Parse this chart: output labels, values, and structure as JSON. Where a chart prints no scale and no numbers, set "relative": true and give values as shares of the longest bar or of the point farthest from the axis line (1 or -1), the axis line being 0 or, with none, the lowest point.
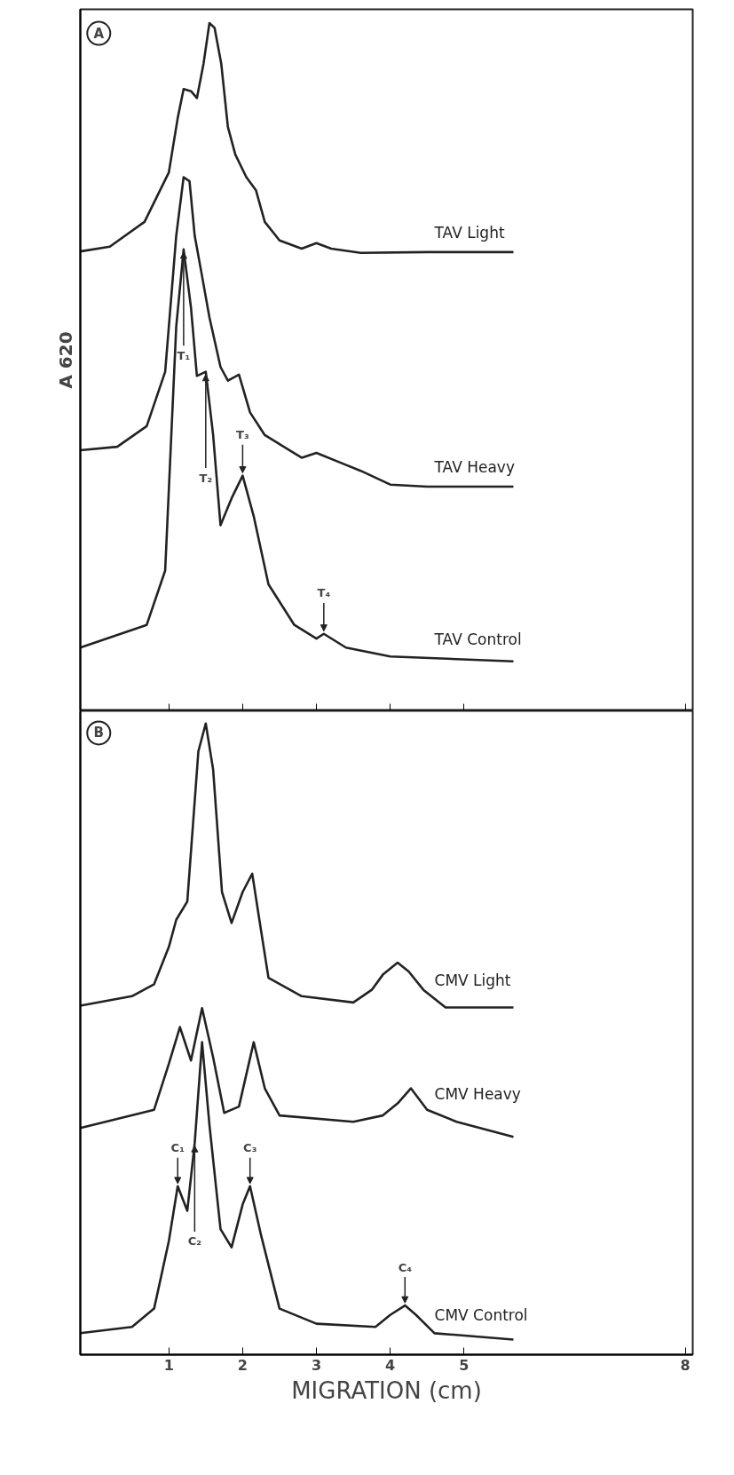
{
  "chart_data": [
    {
      "type": "line",
      "relative": true,
      "xlim": [
        -0.2,
        8.1
      ],
      "xticks": [
        1,
        2,
        3,
        4,
        5,
        8
      ],
      "tick_labels": false,
      "ylabel": "A 620",
      "line_style": "solid",
      "annotations": [
        "A",
        {
          "text": "T₁",
          "x": 1.2,
          "y": 0.671
        },
        {
          "text": "T₂",
          "x": 1.5,
          "y": 0.493
        },
        {
          "text": "T₃",
          "x": 2.0,
          "y": 0.342
        },
        {
          "text": "T₄",
          "x": 3.1,
          "y": 0.112
        }
      ],
      "series": [
        {
          "name": "TAV Light",
          "color": "#222222",
          "x": [
            -0.2,
            0.2,
            0.67,
            1.0,
            1.12,
            1.2,
            1.3,
            1.38,
            1.47,
            1.55,
            1.62,
            1.71,
            1.8,
            1.9,
            2.05,
            2.18,
            2.3,
            2.5,
            2.8,
            3.0,
            3.2,
            3.6,
            4.5,
            5.67
          ],
          "values": [
            0.668,
            0.675,
            0.711,
            0.783,
            0.862,
            0.904,
            0.901,
            0.891,
            0.941,
            1.0,
            0.993,
            0.941,
            0.849,
            0.809,
            0.776,
            0.757,
            0.711,
            0.684,
            0.672,
            0.68,
            0.672,
            0.666,
            0.667,
            0.667
          ]
        },
        {
          "name": "TAV Heavy",
          "color": "#222222",
          "x": [
            -0.2,
            0.3,
            0.7,
            0.95,
            1.1,
            1.2,
            1.28,
            1.35,
            1.44,
            1.55,
            1.7,
            1.8,
            1.95,
            2.1,
            2.3,
            2.8,
            3.0,
            3.3,
            3.6,
            4.0,
            4.5,
            5.67
          ],
          "values": [
            0.379,
            0.384,
            0.414,
            0.493,
            0.691,
            0.776,
            0.77,
            0.691,
            0.638,
            0.572,
            0.5,
            0.48,
            0.489,
            0.434,
            0.401,
            0.368,
            0.375,
            0.362,
            0.349,
            0.329,
            0.326,
            0.326
          ]
        },
        {
          "name": "TAV Control",
          "color": "#222222",
          "x": [
            -0.2,
            0.7,
            0.95,
            1.1,
            1.2,
            1.3,
            1.38,
            1.5,
            1.6,
            1.7,
            1.85,
            2.0,
            2.15,
            2.35,
            2.7,
            3.0,
            3.1,
            3.4,
            4.0,
            5.67
          ],
          "values": [
            0.092,
            0.125,
            0.204,
            0.559,
            0.671,
            0.586,
            0.487,
            0.493,
            0.401,
            0.27,
            0.309,
            0.342,
            0.283,
            0.184,
            0.125,
            0.105,
            0.112,
            0.092,
            0.079,
            0.072
          ]
        }
      ]
    },
    {
      "type": "line",
      "relative": true,
      "xlim": [
        -0.2,
        8.1
      ],
      "xticks": [
        1,
        2,
        3,
        4,
        5,
        8
      ],
      "tick_labels": "x",
      "xlabel": "MIGRATION (cm)",
      "line_style": "solid",
      "annotations": [
        "B",
        {
          "text": "C₁",
          "x": 1.12,
          "y": 0.267
        },
        {
          "text": "C₂",
          "x": 1.35,
          "y": 0.335
        },
        {
          "text": "C₃",
          "x": 2.1,
          "y": 0.267
        },
        {
          "text": "C₄",
          "x": 4.2,
          "y": 0.078
        }
      ],
      "series": [
        {
          "name": "CMV Light",
          "color": "#222222",
          "x": [
            -0.2,
            0.5,
            0.8,
            1.0,
            1.1,
            1.25,
            1.4,
            1.5,
            1.6,
            1.72,
            1.85,
            2.0,
            2.13,
            2.22,
            2.35,
            2.8,
            3.5,
            3.75,
            3.9,
            4.1,
            4.25,
            4.45,
            4.75,
            5.67
          ],
          "values": [
            0.553,
            0.568,
            0.587,
            0.646,
            0.689,
            0.718,
            0.956,
            1.0,
            0.927,
            0.733,
            0.684,
            0.733,
            0.762,
            0.694,
            0.597,
            0.568,
            0.558,
            0.578,
            0.602,
            0.621,
            0.607,
            0.578,
            0.55,
            0.55
          ]
        },
        {
          "name": "CMV Heavy",
          "color": "#222222",
          "x": [
            -0.2,
            0.8,
            1.0,
            1.15,
            1.3,
            1.45,
            1.6,
            1.75,
            1.95,
            2.15,
            2.3,
            2.5,
            3.5,
            3.9,
            4.1,
            4.28,
            4.5,
            4.9,
            5.67
          ],
          "values": [
            0.359,
            0.388,
            0.461,
            0.519,
            0.466,
            0.549,
            0.471,
            0.383,
            0.393,
            0.495,
            0.422,
            0.379,
            0.369,
            0.379,
            0.398,
            0.422,
            0.388,
            0.369,
            0.345
          ]
        },
        {
          "name": "CMV Control",
          "color": "#222222",
          "x": [
            -0.2,
            0.5,
            0.8,
            1.0,
            1.12,
            1.25,
            1.35,
            1.45,
            1.55,
            1.7,
            1.85,
            2.0,
            2.1,
            2.25,
            2.5,
            3.0,
            3.8,
            4.0,
            4.2,
            4.35,
            4.6,
            5.67
          ],
          "values": [
            0.034,
            0.044,
            0.073,
            0.18,
            0.267,
            0.228,
            0.335,
            0.495,
            0.364,
            0.199,
            0.17,
            0.238,
            0.267,
            0.189,
            0.073,
            0.049,
            0.044,
            0.063,
            0.078,
            0.063,
            0.034,
            0.024
          ]
        }
      ]
    }
  ]
}
